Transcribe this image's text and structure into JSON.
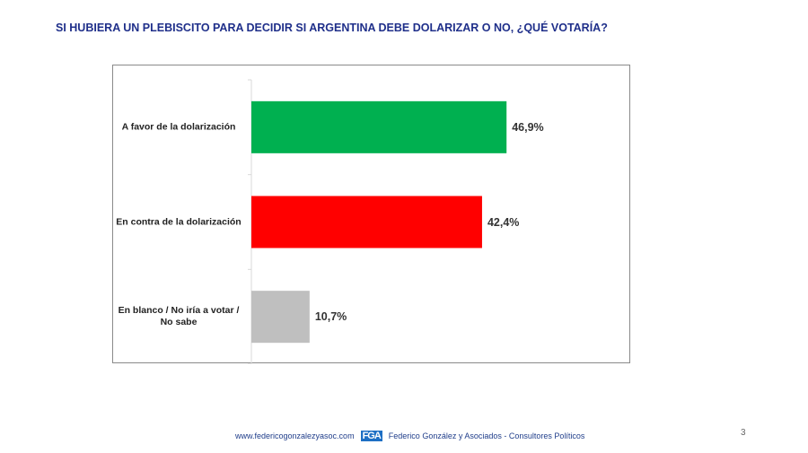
{
  "title": "SI HUBIERA UN PLEBISCITO PARA DECIDIR SI ARGENTINA DEBE DOLARIZAR O NO, ¿QUÉ VOTARÍA?",
  "chart_data": {
    "type": "bar",
    "orientation": "horizontal",
    "title": "SI HUBIERA UN PLEBISCITO PARA DECIDIR SI ARGENTINA DEBE DOLARIZAR O NO, ¿QUÉ VOTARÍA?",
    "categories": [
      "A favor de la dolarización",
      "En contra de la dolarización",
      "En blanco / No iría a votar / No sabe"
    ],
    "values": [
      46.9,
      42.4,
      10.7
    ],
    "labels": [
      "46,9%",
      "42,4%",
      "10,7%"
    ],
    "colors": [
      "#00b050",
      "#ff0000",
      "#bfbfbf"
    ],
    "xlim": [
      0,
      80
    ],
    "grid": false
  },
  "footer": {
    "url": "www.federicogonzalezyasoc.com",
    "logo": "FGA",
    "company": "Federico González y Asociados - Consultores Políticos"
  },
  "page_number": "3"
}
